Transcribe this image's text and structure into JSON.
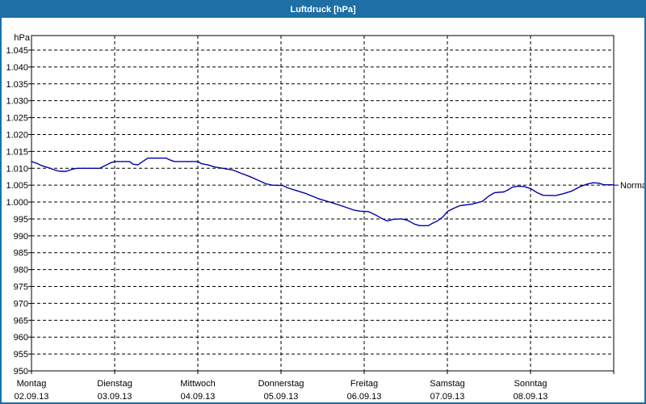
{
  "window": {
    "title": "Luftdruck [hPa]",
    "title_bar_color": "#1d6fa5",
    "border_color": "#1d6fa5"
  },
  "chart_data": {
    "type": "line",
    "title": "Luftdruck [hPa]",
    "ylabel": "hPa",
    "unit_label": "hPa",
    "ylim": [
      950,
      1045
    ],
    "ytick_step": 5,
    "ytick_labels": [
      "950",
      "955",
      "960",
      "965",
      "970",
      "975",
      "980",
      "985",
      "990",
      "995",
      "1.000",
      "1.005",
      "1.010",
      "1.015",
      "1.020",
      "1.025",
      "1.030",
      "1.035",
      "1.040",
      "1.045"
    ],
    "grid": "dashed",
    "line_color": "#0000aa",
    "normal_marker": {
      "label": "Normal",
      "value": 1005
    },
    "days": [
      {
        "name": "Montag",
        "date": "02.09.13"
      },
      {
        "name": "Dienstag",
        "date": "03.09.13"
      },
      {
        "name": "Mittwoch",
        "date": "04.09.13"
      },
      {
        "name": "Donnerstag",
        "date": "05.09.13"
      },
      {
        "name": "Freitag",
        "date": "06.09.13"
      },
      {
        "name": "Samstag",
        "date": "07.09.13"
      },
      {
        "name": "Sonntag",
        "date": "08.09.13"
      }
    ],
    "series": [
      {
        "name": "Luftdruck",
        "x_unit": "days_from_monday_00h",
        "points": [
          [
            0.0,
            1012.0
          ],
          [
            0.06,
            1011.5
          ],
          [
            0.12,
            1010.8
          ],
          [
            0.2,
            1010.2
          ],
          [
            0.28,
            1009.5
          ],
          [
            0.34,
            1009.1
          ],
          [
            0.42,
            1009.1
          ],
          [
            0.5,
            1009.8
          ],
          [
            0.55,
            1010.0
          ],
          [
            0.82,
            1010.0
          ],
          [
            0.88,
            1010.7
          ],
          [
            0.95,
            1011.6
          ],
          [
            1.0,
            1012.0
          ],
          [
            1.18,
            1012.0
          ],
          [
            1.22,
            1011.2
          ],
          [
            1.28,
            1011.0
          ],
          [
            1.33,
            1011.9
          ],
          [
            1.4,
            1013.0
          ],
          [
            1.62,
            1013.0
          ],
          [
            1.66,
            1012.5
          ],
          [
            1.72,
            1012.0
          ],
          [
            2.0,
            1012.0
          ],
          [
            2.04,
            1011.4
          ],
          [
            2.12,
            1011.0
          ],
          [
            2.2,
            1010.4
          ],
          [
            2.3,
            1010.0
          ],
          [
            2.42,
            1009.5
          ],
          [
            2.52,
            1008.5
          ],
          [
            2.62,
            1007.6
          ],
          [
            2.72,
            1006.5
          ],
          [
            2.82,
            1005.4
          ],
          [
            2.9,
            1005.0
          ],
          [
            3.02,
            1004.9
          ],
          [
            3.08,
            1004.2
          ],
          [
            3.2,
            1003.3
          ],
          [
            3.3,
            1002.5
          ],
          [
            3.45,
            1001.0
          ],
          [
            3.6,
            999.9
          ],
          [
            3.75,
            998.7
          ],
          [
            3.88,
            997.6
          ],
          [
            3.95,
            997.3
          ],
          [
            4.05,
            997.2
          ],
          [
            4.15,
            996.0
          ],
          [
            4.22,
            995.0
          ],
          [
            4.28,
            994.4
          ],
          [
            4.35,
            994.9
          ],
          [
            4.45,
            995.0
          ],
          [
            4.52,
            994.6
          ],
          [
            4.6,
            993.5
          ],
          [
            4.67,
            993.0
          ],
          [
            4.77,
            993.0
          ],
          [
            4.82,
            993.7
          ],
          [
            4.88,
            994.4
          ],
          [
            4.95,
            995.7
          ],
          [
            5.0,
            997.2
          ],
          [
            5.08,
            998.2
          ],
          [
            5.15,
            998.9
          ],
          [
            5.3,
            999.4
          ],
          [
            5.42,
            1000.2
          ],
          [
            5.5,
            1001.8
          ],
          [
            5.57,
            1002.8
          ],
          [
            5.68,
            1003.0
          ],
          [
            5.73,
            1003.6
          ],
          [
            5.78,
            1004.4
          ],
          [
            5.85,
            1004.7
          ],
          [
            5.92,
            1004.6
          ],
          [
            6.0,
            1004.0
          ],
          [
            6.08,
            1002.8
          ],
          [
            6.15,
            1002.0
          ],
          [
            6.3,
            1001.9
          ],
          [
            6.4,
            1002.5
          ],
          [
            6.5,
            1003.3
          ],
          [
            6.6,
            1004.6
          ],
          [
            6.68,
            1005.3
          ],
          [
            6.75,
            1005.7
          ],
          [
            6.82,
            1005.6
          ],
          [
            6.88,
            1005.1
          ],
          [
            7.0,
            1005.1
          ]
        ]
      }
    ]
  }
}
